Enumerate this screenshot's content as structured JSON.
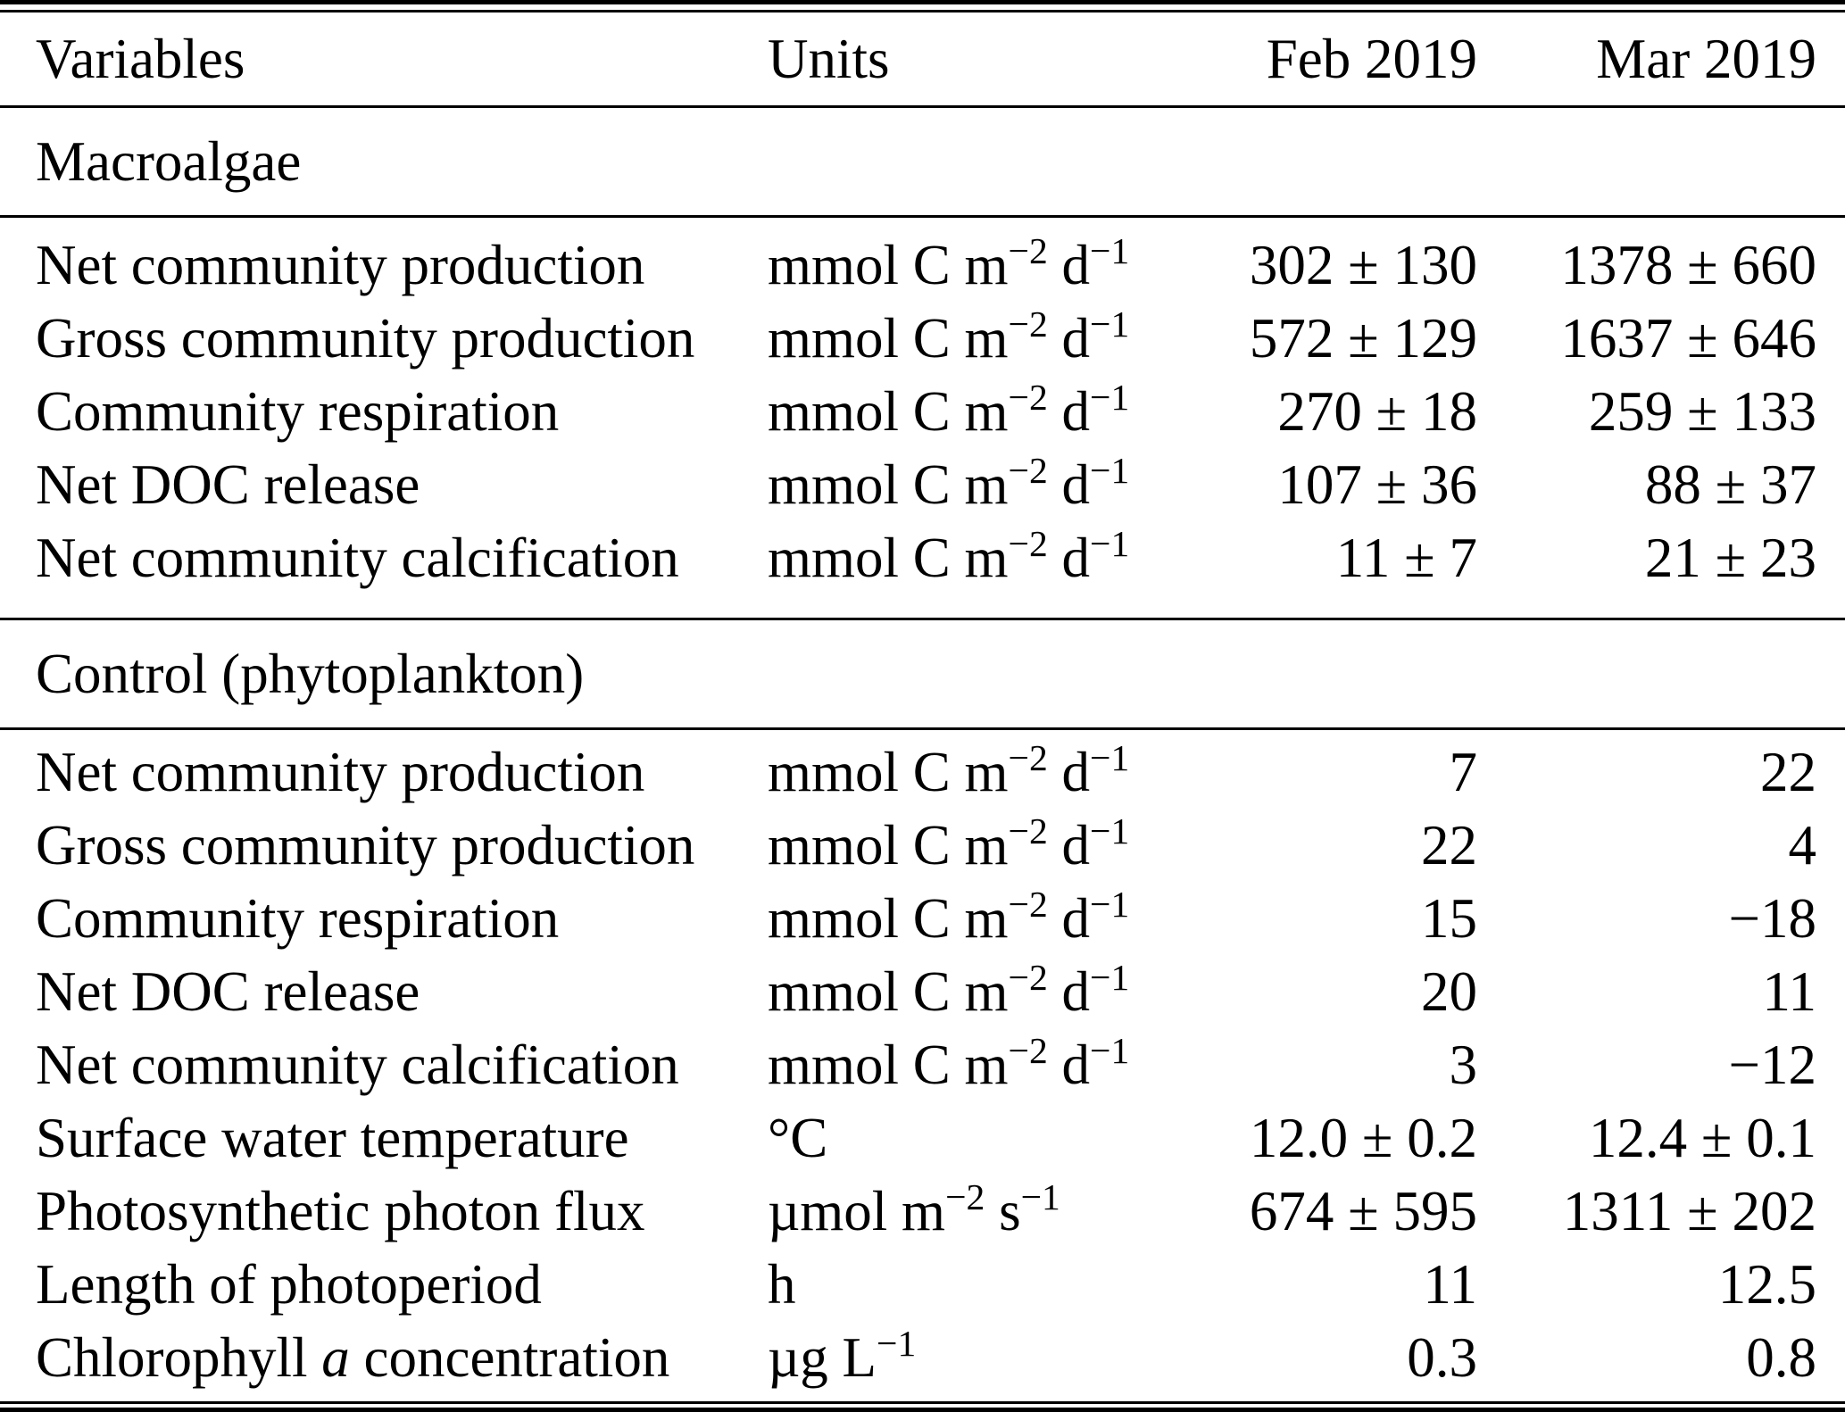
{
  "table": {
    "background_color": "#ffffff",
    "text_color": "#000000",
    "headers": {
      "variables": "Variables",
      "units": "Units",
      "feb": "Feb 2019",
      "mar": "Mar 2019"
    },
    "sections": [
      {
        "title": "Macroalgae",
        "rows": [
          {
            "variable": "Net community production",
            "units": "mmol C m^{−2} d^{−1}",
            "feb": "302 ± 130",
            "mar": "1378 ± 660"
          },
          {
            "variable": "Gross community production",
            "units": "mmol C m^{−2} d^{−1}",
            "feb": "572 ± 129",
            "mar": "1637 ± 646"
          },
          {
            "variable": "Community respiration",
            "units": "mmol C m^{−2} d^{−1}",
            "feb": "270 ± 18",
            "mar": "259 ± 133"
          },
          {
            "variable": "Net DOC release",
            "units": "mmol C m^{−2} d^{−1}",
            "feb": "107 ± 36",
            "mar": "88 ± 37"
          },
          {
            "variable": "Net community calcification",
            "units": "mmol C m^{−2} d^{−1}",
            "feb": "11 ± 7",
            "mar": "21 ± 23"
          }
        ]
      },
      {
        "title": "Control (phytoplankton)",
        "rows": [
          {
            "variable": "Net community production",
            "units": "mmol C m^{−2} d^{−1}",
            "feb": "7",
            "mar": "22"
          },
          {
            "variable": "Gross community production",
            "units": "mmol C m^{−2} d^{−1}",
            "feb": "22",
            "mar": "4"
          },
          {
            "variable": "Community respiration",
            "units": "mmol C m^{−2} d^{−1}",
            "feb": "15",
            "mar": "−18"
          },
          {
            "variable": "Net DOC release",
            "units": "mmol C m^{−2} d^{−1}",
            "feb": "20",
            "mar": "11"
          },
          {
            "variable": "Net community calcification",
            "units": "mmol C m^{−2} d^{−1}",
            "feb": "3",
            "mar": "−12"
          },
          {
            "variable": "Surface water temperature",
            "units": "°C",
            "feb": "12.0 ± 0.2",
            "mar": "12.4 ± 0.1"
          },
          {
            "variable": "Photosynthetic photon flux",
            "units": "µmol m^{−2} s^{−1}",
            "feb": "674 ± 595",
            "mar": "1311 ± 202"
          },
          {
            "variable": "Length of photoperiod",
            "units": "h",
            "feb": "11",
            "mar": "12.5"
          },
          {
            "variable": "Chlorophyll *a* concentration",
            "units": "µg L^{−1}",
            "feb": "0.3",
            "mar": "0.8"
          }
        ]
      }
    ]
  }
}
